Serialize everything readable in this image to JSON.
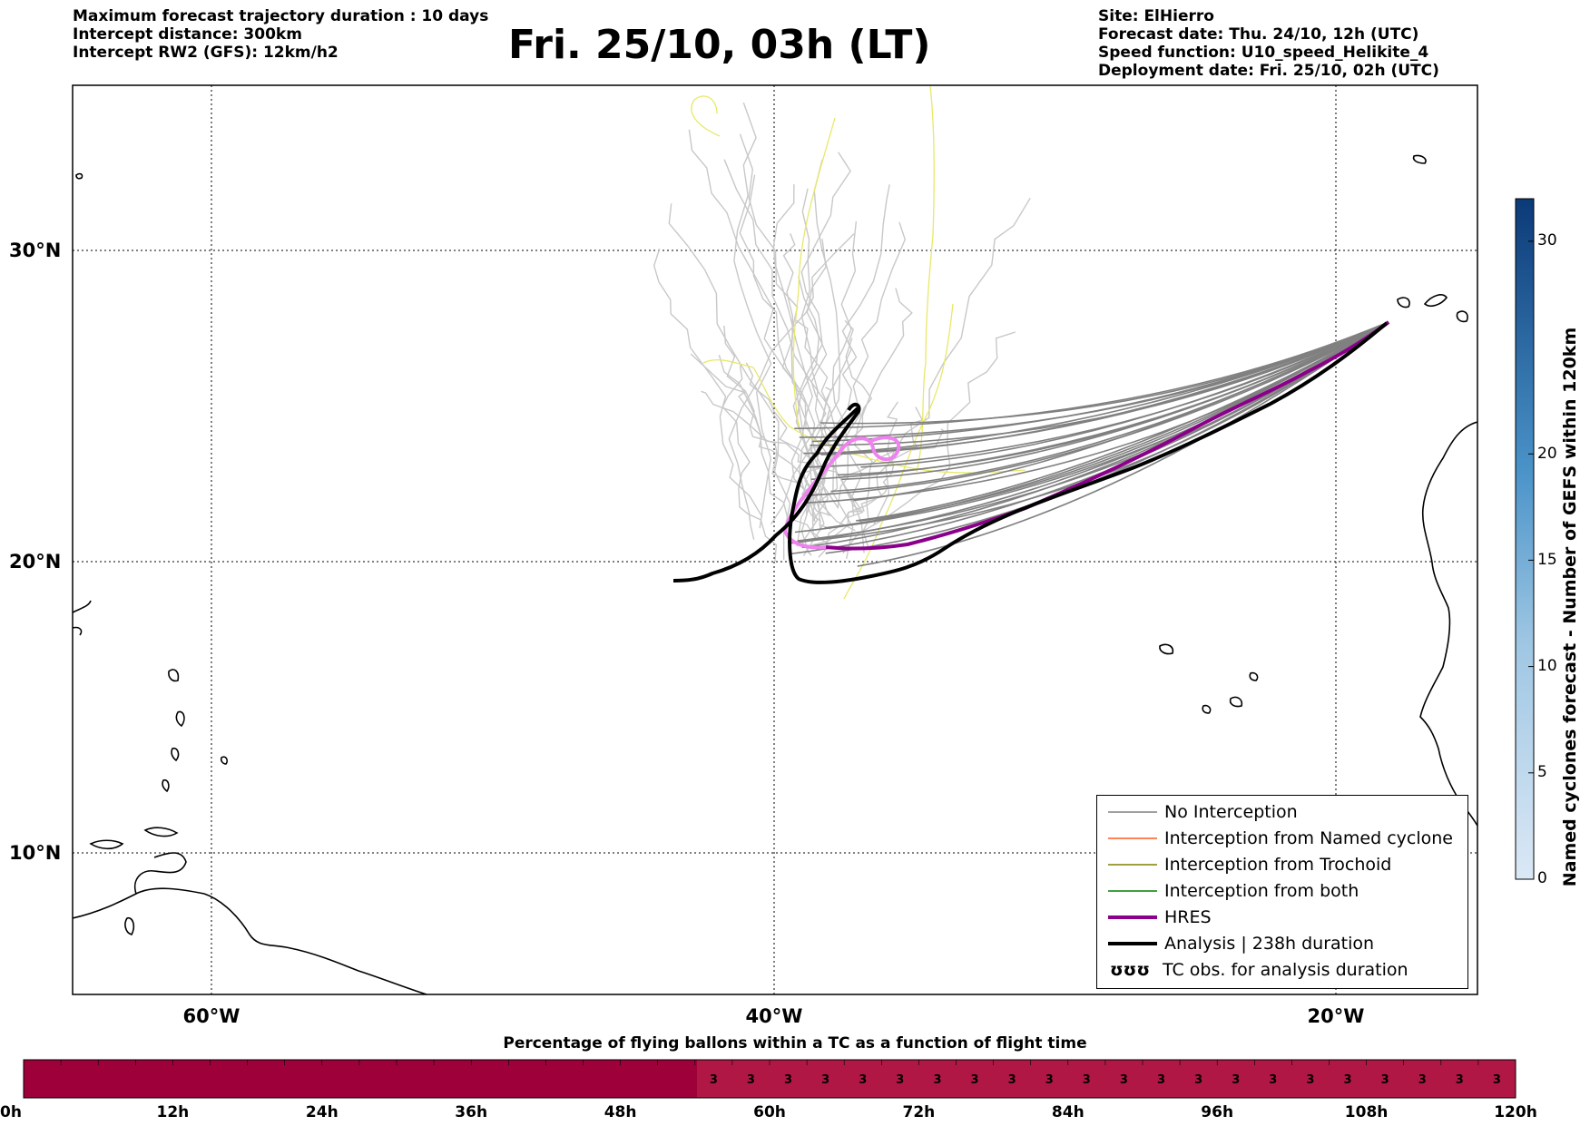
{
  "header_left": {
    "line1": "Maximum forecast trajectory duration : 10 days",
    "line2": "Intercept distance: 300km",
    "line3": "Intercept RW2 (GFS):  12km/h2"
  },
  "title": "Fri. 25/10, 03h (LT)",
  "header_right": {
    "site": "Site: ElHierro",
    "forecast_date": "Forecast date: Thu. 24/10, 12h (UTC)",
    "speed_function": "Speed function: U10_speed_Helikite_4",
    "deployment_date": "Deployment date: Fri. 25/10, 02h (UTC)"
  },
  "map": {
    "lat_labels": [
      "30°N",
      "20°N",
      "10°N"
    ],
    "lon_labels": [
      "60°W",
      "40°W",
      "20°W"
    ],
    "colors": {
      "no_interception": "#808080",
      "named_cyclone": "#ff5a1f",
      "trochoid": "#808000",
      "both": "#008000",
      "hres": "#8b008b",
      "analysis": "#000000",
      "hres_recent": "#ee82ee",
      "ensemble_light": "#c8c8c8",
      "yellow_track": "#e8e86a"
    }
  },
  "legend": {
    "items": [
      {
        "label": "No Interception"
      },
      {
        "label": "Interception from Named cyclone"
      },
      {
        "label": "Interception from Trochoid"
      },
      {
        "label": "Interception from both"
      },
      {
        "label": "HRES"
      },
      {
        "label": "Analysis | 238h duration"
      },
      {
        "label": "TC obs. for analysis duration",
        "symbol": "ʊʊʊ"
      }
    ]
  },
  "colorbar": {
    "label": "Named cyclones forecast - Number of GEFS within 120km",
    "ticks": [
      "0",
      "5",
      "10",
      "15",
      "20",
      "30"
    ],
    "range": [
      0,
      32
    ]
  },
  "flight_bar": {
    "title": "Percentage of flying ballons within a TC as a function of flight time",
    "ticks": [
      "0h",
      "12h",
      "24h",
      "36h",
      "48h",
      "60h",
      "72h",
      "84h",
      "96h",
      "108h",
      "120h"
    ],
    "cell_value": "3",
    "dark_color": "#9e003a",
    "light_color": "#b01745"
  }
}
